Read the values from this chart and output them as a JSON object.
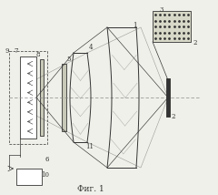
{
  "bg_color": "#f0f0ea",
  "title": "Фиг. 1",
  "oy": 0.5,
  "dark": "#333333",
  "gray": "#888888"
}
